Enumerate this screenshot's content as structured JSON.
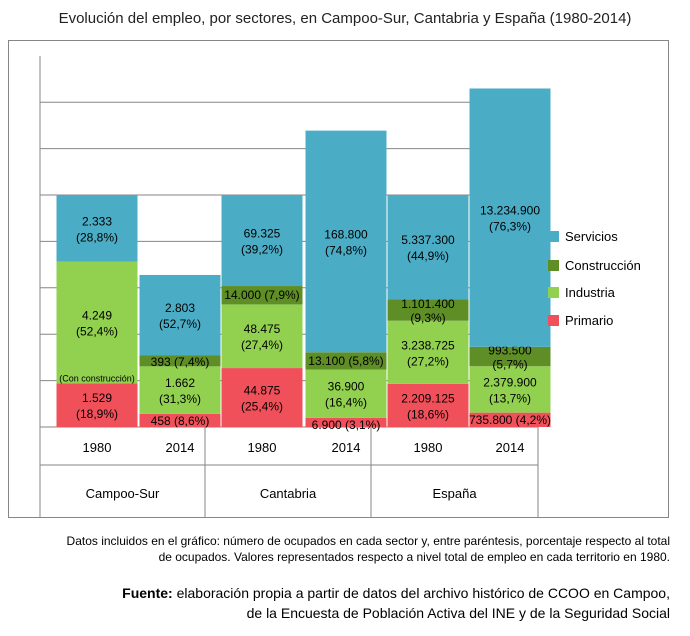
{
  "chart_data": {
    "type": "bar",
    "stacked": true,
    "title": "Evolución del empleo, por sectores, en Campoo-Sur, Cantabria y España (1980-2014)",
    "note": "",
    "groups": [
      {
        "name": "Campoo-Sur",
        "bars": [
          {
            "year": "1980",
            "segments": [
              {
                "sector": "Primario",
                "value": 1529,
                "pct": 18.9,
                "label": "1.529",
                "pct_label": "(18,9%)"
              },
              {
                "sector": "Industria",
                "value": 4249,
                "pct": 52.4,
                "label": "4.249",
                "pct_label": "(52,4%)",
                "extra_label": "(Con construcción)"
              },
              {
                "sector": "Servicios",
                "value": 2333,
                "pct": 28.8,
                "label": "2.333",
                "pct_label": "(28,8%)"
              }
            ]
          },
          {
            "year": "2014",
            "segments": [
              {
                "sector": "Primario",
                "value": 458,
                "pct": 8.6,
                "label": "458 (8,6%)"
              },
              {
                "sector": "Industria",
                "value": 1662,
                "pct": 31.3,
                "label": "1.662",
                "pct_label": "(31,3%)"
              },
              {
                "sector": "Construcción",
                "value": 393,
                "pct": 7.4,
                "label": "393 (7,4%)"
              },
              {
                "sector": "Servicios",
                "value": 2803,
                "pct": 52.7,
                "label": "2.803",
                "pct_label": "(52,7%)"
              }
            ]
          }
        ]
      },
      {
        "name": "Cantabria",
        "bars": [
          {
            "year": "1980",
            "segments": [
              {
                "sector": "Primario",
                "value": 44875,
                "pct": 25.4,
                "label": "44.875",
                "pct_label": "(25,4%)"
              },
              {
                "sector": "Industria",
                "value": 48475,
                "pct": 27.4,
                "label": "48.475",
                "pct_label": "(27,4%)"
              },
              {
                "sector": "Construcción",
                "value": 14000,
                "pct": 7.9,
                "label": "14.000 (7,9%)"
              },
              {
                "sector": "Servicios",
                "value": 69325,
                "pct": 39.2,
                "label": "69.325",
                "pct_label": "(39,2%)"
              }
            ]
          },
          {
            "year": "2014",
            "segments": [
              {
                "sector": "Primario",
                "value": 6900,
                "pct": 3.1,
                "label": "6.900 (3,1%)"
              },
              {
                "sector": "Industria",
                "value": 36900,
                "pct": 16.4,
                "label": "36.900",
                "pct_label": "(16,4%)"
              },
              {
                "sector": "Construcción",
                "value": 13100,
                "pct": 5.8,
                "label": "13.100 (5,8%)"
              },
              {
                "sector": "Servicios",
                "value": 168800,
                "pct": 74.8,
                "label": "168.800",
                "pct_label": "(74,8%)"
              }
            ]
          }
        ]
      },
      {
        "name": "España",
        "bars": [
          {
            "year": "1980",
            "segments": [
              {
                "sector": "Primario",
                "value": 2209125,
                "pct": 18.6,
                "label": "2.209.125",
                "pct_label": "(18,6%)"
              },
              {
                "sector": "Industria",
                "value": 3238725,
                "pct": 27.2,
                "label": "3.238.725",
                "pct_label": "(27,2%)"
              },
              {
                "sector": "Construcción",
                "value": 1101400,
                "pct": 9.3,
                "label": "1.101.400",
                "pct_label": "(9,3%)"
              },
              {
                "sector": "Servicios",
                "value": 5337300,
                "pct": 44.9,
                "label": "5.337.300",
                "pct_label": "(44,9%)"
              }
            ]
          },
          {
            "year": "2014",
            "segments": [
              {
                "sector": "Primario",
                "value": 735800,
                "pct": 4.2,
                "label": "735.800 (4,2%)"
              },
              {
                "sector": "Industria",
                "value": 2379900,
                "pct": 13.7,
                "label": "2.379.900",
                "pct_label": "(13,7%)"
              },
              {
                "sector": "Construcción",
                "value": 993500,
                "pct": 5.7,
                "label": "993.500",
                "pct_label": "(5,7%)"
              },
              {
                "sector": "Servicios",
                "value": 13234900,
                "pct": 76.3,
                "label": "13.234.900",
                "pct_label": "(76,3%)"
              }
            ]
          }
        ]
      }
    ],
    "legend": [
      {
        "name": "Servicios",
        "color": "#4bacc6"
      },
      {
        "name": "Construcción",
        "color": "#5e8e25"
      },
      {
        "name": "Industria",
        "color": "#92d050"
      },
      {
        "name": "Primario",
        "color": "#f0505a"
      }
    ],
    "legend_position": "right",
    "y_scale": "relative to each territory's 1980 total employment",
    "grid": true
  },
  "footer": {
    "note_line1": "Datos incluidos en el gráfico: número de ocupados  en cada sector y, entre paréntesis, porcentaje respecto al total",
    "note_line2": "de ocupados.  Valores representados respecto a nivel total de empleo en cada territorio en 1980.",
    "source_label": "Fuente:",
    "source_line1": " elaboración propia a partir de datos del archivo histórico de CCOO en Campoo,",
    "source_line2": "de la Encuesta de Población Activa del INE y de la Seguridad Social"
  }
}
